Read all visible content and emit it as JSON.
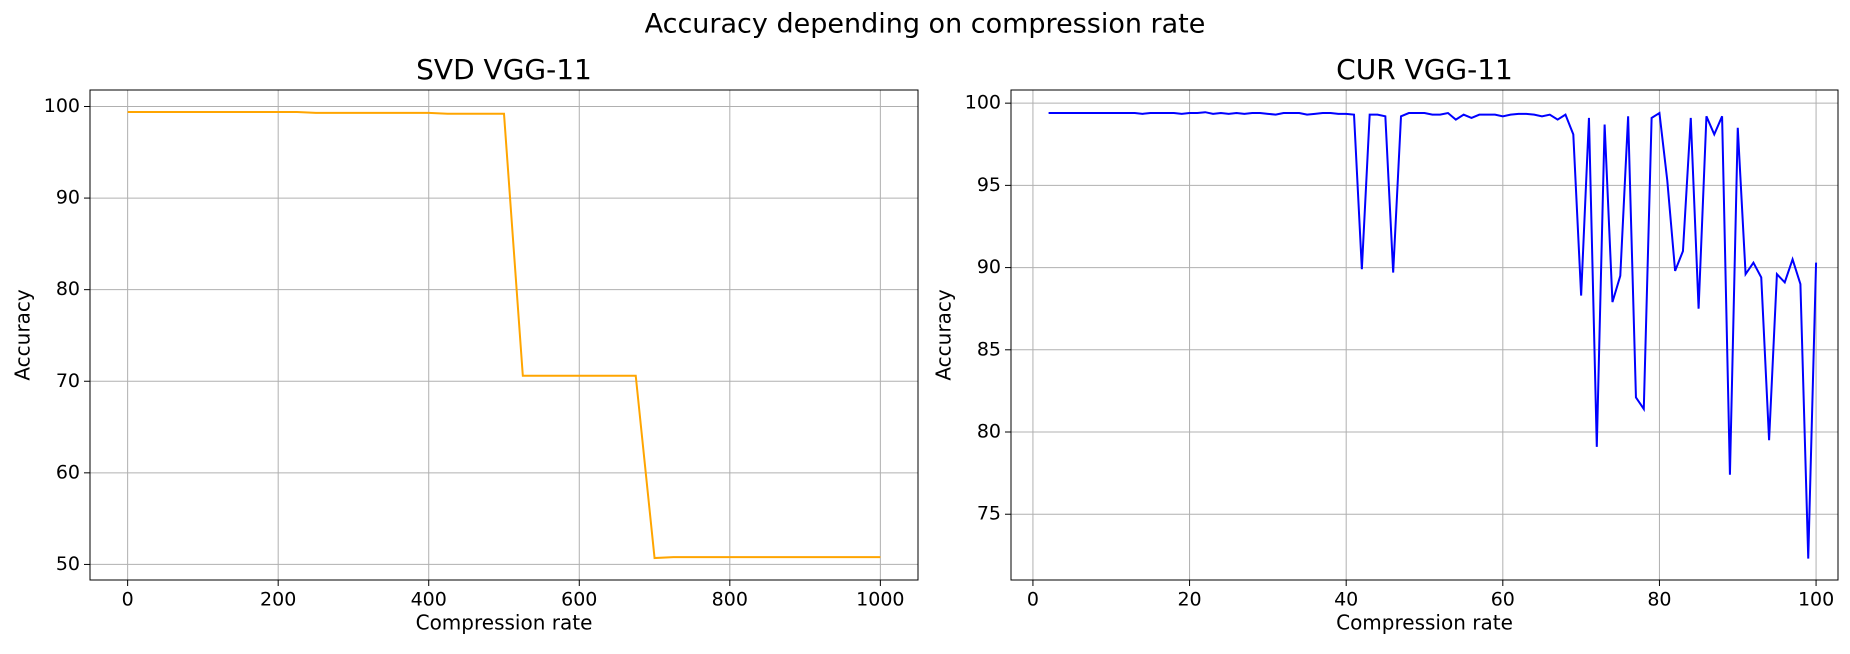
{
  "title": "Accuracy depending on compression rate",
  "chart_data": [
    {
      "type": "line",
      "title": "SVD VGG-11",
      "x_label": "Compression rate",
      "y_label": "Accuracy",
      "color": "#ffa500",
      "grid": true,
      "x": [
        0,
        25,
        50,
        75,
        100,
        125,
        150,
        175,
        200,
        225,
        250,
        275,
        300,
        325,
        350,
        375,
        400,
        425,
        450,
        475,
        500,
        525,
        550,
        575,
        600,
        625,
        650,
        675,
        700,
        725,
        750,
        775,
        800,
        825,
        850,
        875,
        900,
        925,
        950,
        975,
        1000
      ],
      "values": [
        99.4,
        99.4,
        99.4,
        99.4,
        99.4,
        99.4,
        99.4,
        99.4,
        99.4,
        99.4,
        99.3,
        99.3,
        99.3,
        99.3,
        99.3,
        99.3,
        99.3,
        99.2,
        99.2,
        99.2,
        99.2,
        70.6,
        70.6,
        70.6,
        70.6,
        70.6,
        70.6,
        70.6,
        50.7,
        50.8,
        50.8,
        50.8,
        50.8,
        50.8,
        50.8,
        50.8,
        50.8,
        50.8,
        50.8,
        50.8,
        50.8
      ],
      "xlim": [
        -50,
        1050
      ],
      "ylim": [
        48.3,
        101.8
      ],
      "xticks": [
        0,
        200,
        400,
        600,
        800,
        1000
      ],
      "yticks": [
        50,
        60,
        70,
        80,
        90,
        100
      ]
    },
    {
      "type": "line",
      "title": "CUR VGG-11",
      "x_label": "Compression rate",
      "y_label": "Accuracy",
      "color": "#0000ff",
      "grid": true,
      "x": [
        2,
        3,
        4,
        5,
        6,
        7,
        8,
        9,
        10,
        11,
        12,
        13,
        14,
        15,
        16,
        17,
        18,
        19,
        20,
        21,
        22,
        23,
        24,
        25,
        26,
        27,
        28,
        29,
        30,
        31,
        32,
        33,
        34,
        35,
        36,
        37,
        38,
        39,
        40,
        41,
        42,
        43,
        44,
        45,
        46,
        47,
        48,
        49,
        50,
        51,
        52,
        53,
        54,
        55,
        56,
        57,
        58,
        59,
        60,
        61,
        62,
        63,
        64,
        65,
        66,
        67,
        68,
        69,
        70,
        71,
        72,
        73,
        74,
        75,
        76,
        77,
        78,
        79,
        80,
        81,
        82,
        83,
        84,
        85,
        86,
        87,
        88,
        89,
        90,
        91,
        92,
        93,
        94,
        95,
        96,
        97,
        98,
        99,
        100
      ],
      "values": [
        99.4,
        99.4,
        99.4,
        99.4,
        99.4,
        99.4,
        99.4,
        99.4,
        99.4,
        99.4,
        99.4,
        99.4,
        99.35,
        99.4,
        99.4,
        99.4,
        99.4,
        99.35,
        99.4,
        99.4,
        99.45,
        99.35,
        99.4,
        99.35,
        99.4,
        99.35,
        99.4,
        99.4,
        99.35,
        99.3,
        99.4,
        99.4,
        99.4,
        99.3,
        99.35,
        99.4,
        99.4,
        99.35,
        99.35,
        99.3,
        89.9,
        99.3,
        99.3,
        99.2,
        89.7,
        99.2,
        99.4,
        99.4,
        99.4,
        99.3,
        99.3,
        99.4,
        99.0,
        99.3,
        99.1,
        99.3,
        99.3,
        99.3,
        99.2,
        99.3,
        99.35,
        99.35,
        99.3,
        99.2,
        99.3,
        99.0,
        99.3,
        98.1,
        88.3,
        99.1,
        79.1,
        98.7,
        87.9,
        89.5,
        99.2,
        82.1,
        81.4,
        99.1,
        99.4,
        95.3,
        89.8,
        91.0,
        99.1,
        87.5,
        99.2,
        98.1,
        99.2,
        77.4,
        98.5,
        89.6,
        90.3,
        89.4,
        79.5,
        89.6,
        89.1,
        90.5,
        89.0,
        72.3,
        90.3
      ],
      "xlim": [
        -2.8,
        102.8
      ],
      "ylim": [
        71.0,
        100.8
      ],
      "xticks": [
        0,
        20,
        40,
        60,
        80,
        100
      ],
      "yticks": [
        75,
        80,
        85,
        90,
        95,
        100
      ]
    }
  ]
}
